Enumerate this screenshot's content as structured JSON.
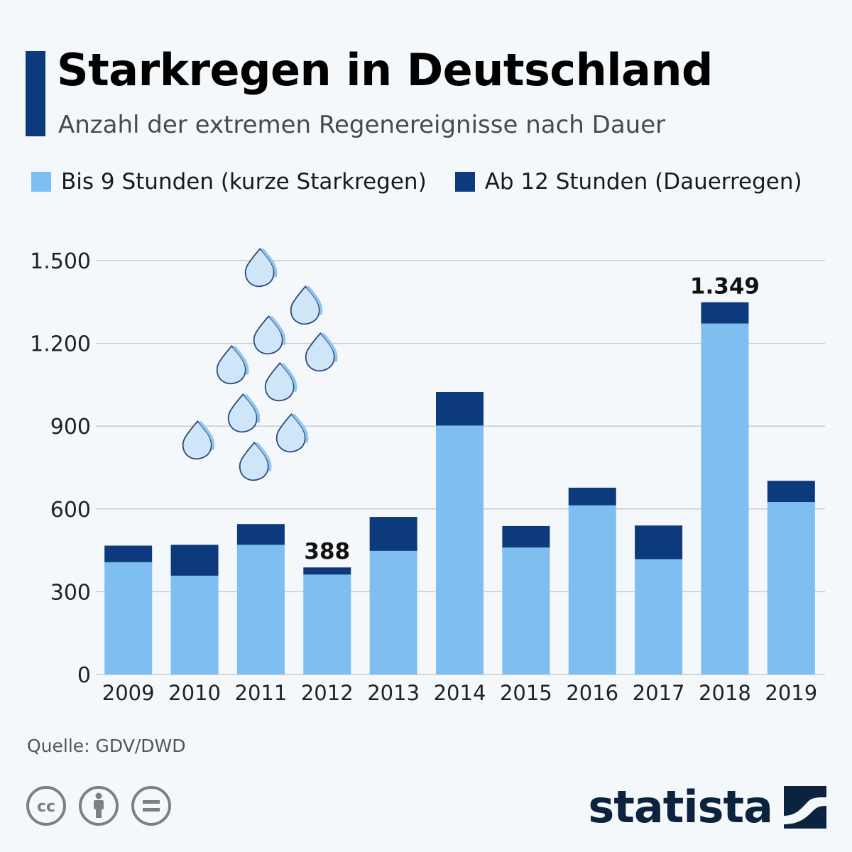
{
  "header": {
    "title": "Starkregen in Deutschland",
    "subtitle": "Anzahl der extremen Regenereignisse nach Dauer"
  },
  "legend": {
    "short_label": "Bis 9 Stunden (kurze Starkregen)",
    "long_label": "Ab 12 Stunden (Dauerregen)"
  },
  "colors": {
    "short": "#7ebef0",
    "long": "#0c3a7d",
    "accent": "#0c3a7d",
    "grid": "#c8ccd2"
  },
  "chart_data": {
    "type": "bar",
    "stacked": true,
    "title": "Starkregen in Deutschland",
    "subtitle": "Anzahl der extremen Regenereignisse nach Dauer",
    "categories": [
      "2009",
      "2010",
      "2011",
      "2012",
      "2013",
      "2014",
      "2015",
      "2016",
      "2017",
      "2018",
      "2019"
    ],
    "series": [
      {
        "name": "Bis 9 Stunden (kurze Starkregen)",
        "values": [
          407,
          358,
          470,
          362,
          448,
          902,
          460,
          613,
          418,
          1272,
          625
        ]
      },
      {
        "name": "Ab 12 Stunden (Dauerregen)",
        "values": [
          60,
          112,
          75,
          26,
          123,
          122,
          78,
          64,
          122,
          77,
          77
        ]
      }
    ],
    "yticks": [
      0,
      300,
      600,
      900,
      1200,
      1500
    ],
    "ytick_labels": [
      "0",
      "300",
      "600",
      "900",
      "1.200",
      "1.500"
    ],
    "ylim": [
      0,
      1500
    ],
    "grid": true,
    "legend_position": "top",
    "annotations": [
      {
        "category": "2012",
        "text": "388"
      },
      {
        "category": "2018",
        "text": "1.349"
      }
    ]
  },
  "footer": {
    "source": "Quelle: GDV/DWD",
    "brand": "statista",
    "license_icons": [
      "cc-icon",
      "attribution-icon",
      "no-derivatives-icon"
    ]
  }
}
